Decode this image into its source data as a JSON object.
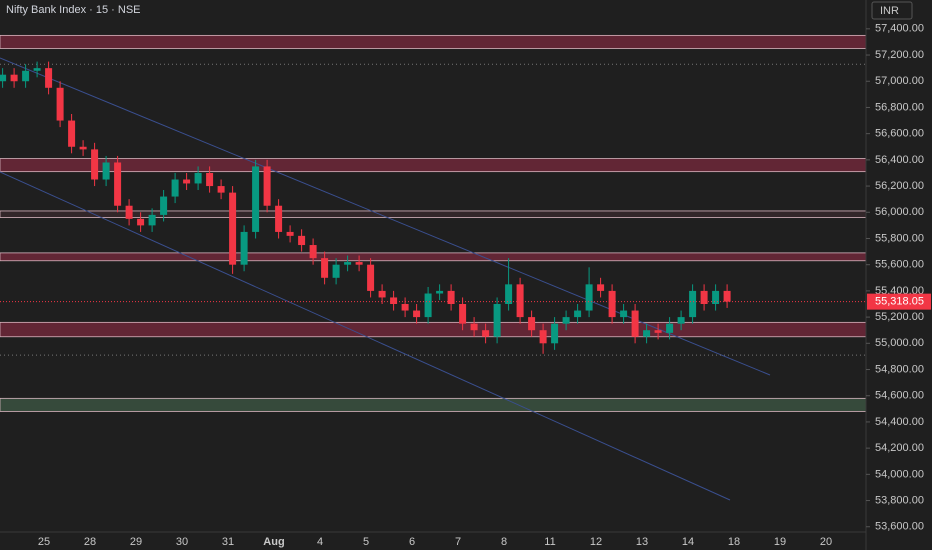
{
  "chart_data": {
    "type": "candlestick",
    "title": "Nifty Bank Index · 15 · NSE",
    "currency": "INR",
    "up_color": "#089981",
    "down_color": "#f23645",
    "open": [
      57000,
      57050,
      57000,
      57080,
      57100,
      56950,
      56700,
      56500,
      56480,
      56250,
      56380,
      56050,
      55950,
      55900,
      55980,
      56120,
      56250,
      56220,
      56300,
      56200,
      56150,
      55600,
      55850,
      56350,
      56050,
      55850,
      55820,
      55750,
      55650,
      55500,
      55600,
      55620,
      55600,
      55400,
      55350,
      55300,
      55250,
      55200,
      55380,
      55400,
      55300,
      55150,
      55100,
      55050,
      55300,
      55450,
      55200,
      55100,
      55000,
      55150,
      55200,
      55250,
      55450,
      55400,
      55200,
      55250,
      55050,
      55100,
      55080,
      55150,
      55200,
      55400,
      55300,
      55400
    ],
    "high": [
      57100,
      57100,
      57130,
      57150,
      57150,
      57000,
      56750,
      56550,
      56530,
      56430,
      56430,
      56100,
      56000,
      56030,
      56170,
      56300,
      56300,
      56350,
      56350,
      56250,
      56200,
      55900,
      56400,
      56400,
      56100,
      55900,
      55870,
      55800,
      55700,
      55650,
      55670,
      55670,
      55650,
      55450,
      55400,
      55350,
      55300,
      55430,
      55450,
      55450,
      55350,
      55200,
      55150,
      55350,
      55650,
      55500,
      55250,
      55150,
      55200,
      55250,
      55300,
      55580,
      55500,
      55450,
      55300,
      55300,
      55150,
      55150,
      55200,
      55250,
      55450,
      55450,
      55450,
      55450
    ],
    "low": [
      56950,
      56950,
      56950,
      57030,
      56900,
      56650,
      56450,
      56430,
      56200,
      56200,
      56000,
      55900,
      55850,
      55850,
      55930,
      56070,
      56170,
      56170,
      56150,
      56100,
      55530,
      55550,
      55800,
      56000,
      55800,
      55770,
      55700,
      55600,
      55450,
      55450,
      55550,
      55550,
      55350,
      55300,
      55250,
      55200,
      55150,
      55150,
      55330,
      55250,
      55100,
      55050,
      55000,
      55000,
      55250,
      55150,
      55050,
      54920,
      54950,
      55100,
      55150,
      55200,
      55350,
      55150,
      55150,
      55000,
      55000,
      55030,
      55030,
      55100,
      55150,
      55250,
      55250,
      55270
    ],
    "close": [
      57050,
      57000,
      57080,
      57100,
      56950,
      56700,
      56500,
      56480,
      56250,
      56380,
      56050,
      55950,
      55900,
      55980,
      56120,
      56250,
      56220,
      56300,
      56200,
      56150,
      55600,
      55850,
      56350,
      56050,
      55850,
      55820,
      55750,
      55650,
      55500,
      55600,
      55620,
      55600,
      55400,
      55350,
      55300,
      55250,
      55200,
      55380,
      55400,
      55300,
      55150,
      55100,
      55050,
      55300,
      55450,
      55200,
      55100,
      55000,
      55150,
      55200,
      55250,
      55450,
      55400,
      55200,
      55250,
      55050,
      55100,
      55080,
      55150,
      55200,
      55400,
      55300,
      55400,
      55318.05
    ],
    "x_labels": [
      "25",
      "28",
      "29",
      "30",
      "31",
      "Aug",
      "4",
      "5",
      "6",
      "7",
      "8",
      "11",
      "12",
      "13",
      "14",
      "18",
      "19",
      "20"
    ],
    "ylim": [
      53560,
      57620
    ],
    "yticks": [
      {
        "value": 53600,
        "label": "53,600.00"
      },
      {
        "value": 53800,
        "label": "53,800.00"
      },
      {
        "value": 54000,
        "label": "54,000.00"
      },
      {
        "value": 54200,
        "label": "54,200.00"
      },
      {
        "value": 54400,
        "label": "54,400.00"
      },
      {
        "value": 54600,
        "label": "54,600.00"
      },
      {
        "value": 54800,
        "label": "54,800.00"
      },
      {
        "value": 55000,
        "label": "55,000.00"
      },
      {
        "value": 55200,
        "label": "55,200.00"
      },
      {
        "value": 55400,
        "label": "55,400.00"
      },
      {
        "value": 55600,
        "label": "55,600.00"
      },
      {
        "value": 55800,
        "label": "55,800.00"
      },
      {
        "value": 56000,
        "label": "56,000.00"
      },
      {
        "value": 56200,
        "label": "56,200.00"
      },
      {
        "value": 56400,
        "label": "56,400.00"
      },
      {
        "value": 56600,
        "label": "56,600.00"
      },
      {
        "value": 56800,
        "label": "56,800.00"
      },
      {
        "value": 57000,
        "label": "57,000.00"
      },
      {
        "value": 57200,
        "label": "57,200.00"
      },
      {
        "value": 57400,
        "label": "57,400.00"
      }
    ],
    "zones": [
      {
        "top": 57350,
        "bottom": 57250,
        "color": "#7a2a3e"
      },
      {
        "top": 56410,
        "bottom": 56310,
        "color": "#7a2a3e"
      },
      {
        "top": 56010,
        "bottom": 55960,
        "color": "#3a2a2e"
      },
      {
        "top": 55690,
        "bottom": 55630,
        "color": "#7a2a3e"
      },
      {
        "top": 55160,
        "bottom": 55050,
        "color": "#7a2a3e"
      },
      {
        "top": 54580,
        "bottom": 54480,
        "color": "#3f5a45"
      }
    ],
    "levels": [
      57130,
      54910
    ],
    "last_price": {
      "value": 55318.05,
      "label": "55,318.05"
    }
  }
}
